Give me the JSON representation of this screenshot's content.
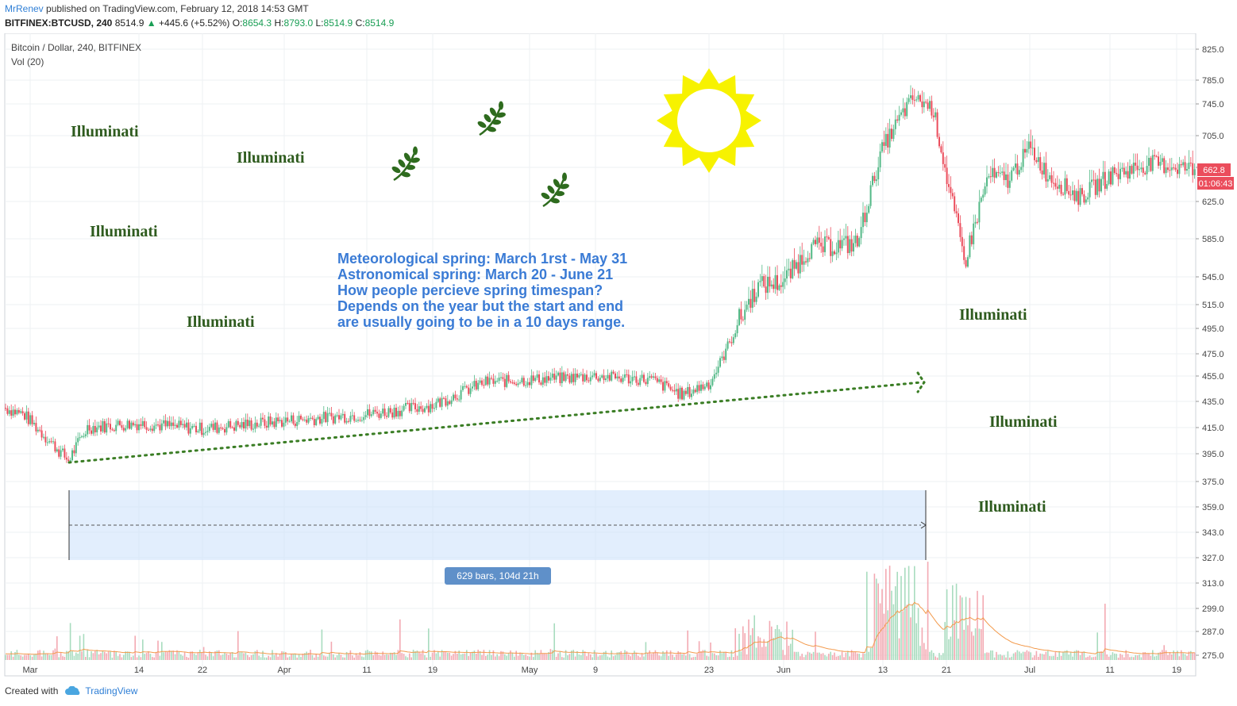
{
  "header": {
    "author": "MrRenev",
    "published": "published on TradingView.com, February 12, 2018 14:53 GMT",
    "symbol": "BITFINEX:BTCUSD, 240",
    "price": "8514.9",
    "change": "+445.6 (+5.52%)",
    "o_label": "O:",
    "o": "8654.3",
    "h_label": "H:",
    "h": "8793.0",
    "l_label": "L:",
    "l": "8514.9",
    "c_label": "C:",
    "c": "8514.9"
  },
  "legend": {
    "series": "Bitcoin / Dollar, 240, BITFINEX",
    "vol": "Vol (20)"
  },
  "annotations": {
    "illuminati": "Illuminati",
    "note_lines": [
      "Meteorological spring: March 1rst - May 31",
      "Astronomical spring: March 20 - June 21",
      "How people percieve spring timespan?",
      "Depends on the year but the start and end",
      "are usually going to be in a 10 days range."
    ],
    "range_label": "629 bars, 104d 21h"
  },
  "price_tag": {
    "last": "662.8",
    "countdown": "01:06:43"
  },
  "colors": {
    "up": "#53b987",
    "down": "#eb4d5c",
    "accent": "#2f7fd6",
    "annot_text": "#2e5b1e",
    "note_text": "#3a7bd5",
    "sun": "#f7f200"
  },
  "footer": {
    "created": "Created with",
    "brand": "TradingView"
  },
  "chart_data": {
    "type": "candlestick",
    "y_axis_ticks": [
      "825.0",
      "785.0",
      "745.0",
      "705.0",
      "665.0",
      "625.0",
      "585.0",
      "545.0",
      "515.0",
      "495.0",
      "475.0",
      "455.0",
      "435.0",
      "415.0",
      "395.0",
      "375.0",
      "359.0",
      "343.0",
      "327.0",
      "313.0",
      "299.0",
      "287.0",
      "275.0"
    ],
    "x_axis_labels": [
      "Mar",
      "14",
      "22",
      "Apr",
      "11",
      "19",
      "May",
      "9",
      "23",
      "Jun",
      "13",
      "21",
      "Jul",
      "11",
      "19"
    ],
    "close_path": [
      {
        "x": "Mar 1",
        "y": 430
      },
      {
        "x": "Mar 3",
        "y": 425
      },
      {
        "x": "Mar 6",
        "y": 390
      },
      {
        "x": "Mar 10",
        "y": 415
      },
      {
        "x": "Mar 14",
        "y": 418
      },
      {
        "x": "Mar 22",
        "y": 414
      },
      {
        "x": "Apr 1",
        "y": 420
      },
      {
        "x": "Apr 11",
        "y": 425
      },
      {
        "x": "Apr 19",
        "y": 432
      },
      {
        "x": "Apr 26",
        "y": 450
      },
      {
        "x": "May 1",
        "y": 452
      },
      {
        "x": "May 9",
        "y": 455
      },
      {
        "x": "May 16",
        "y": 452
      },
      {
        "x": "May 23",
        "y": 440
      },
      {
        "x": "May 26",
        "y": 450
      },
      {
        "x": "May 28",
        "y": 535
      },
      {
        "x": "Jun 1",
        "y": 540
      },
      {
        "x": "Jun 4",
        "y": 575
      },
      {
        "x": "Jun 10",
        "y": 580
      },
      {
        "x": "Jun 13",
        "y": 690
      },
      {
        "x": "Jun 16",
        "y": 755
      },
      {
        "x": "Jun 18",
        "y": 740
      },
      {
        "x": "Jun 20",
        "y": 640
      },
      {
        "x": "Jun 22",
        "y": 560
      },
      {
        "x": "Jun 24",
        "y": 655
      },
      {
        "x": "Jun 27",
        "y": 650
      },
      {
        "x": "Jul 1",
        "y": 690
      },
      {
        "x": "Jul 5",
        "y": 655
      },
      {
        "x": "Jul 9",
        "y": 630
      },
      {
        "x": "Jul 13",
        "y": 655
      },
      {
        "x": "Jul 17",
        "y": 670
      },
      {
        "x": "Jul 20",
        "y": 662.8
      }
    ],
    "volume_ma_period": 20,
    "grid": true
  }
}
